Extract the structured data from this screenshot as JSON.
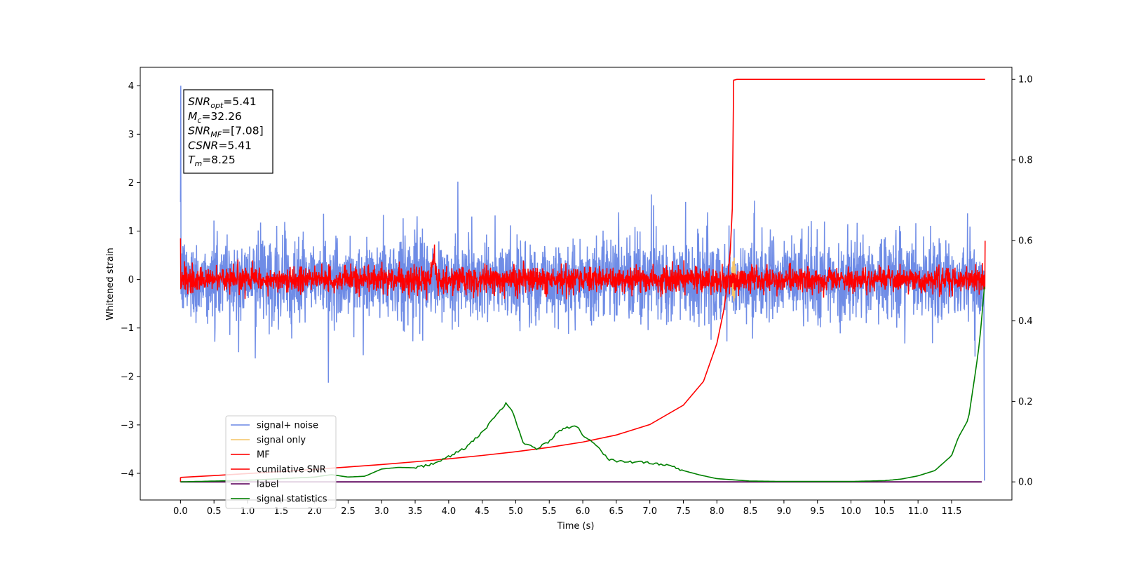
{
  "chart_data": {
    "type": "line",
    "xlabel": "Time (s)",
    "ylabel": "Whitened strain",
    "xlim": [
      -0.6,
      12.4
    ],
    "ylim": [
      -4.55,
      4.38
    ],
    "y2lim": [
      -0.045,
      1.03
    ],
    "x_ticks": [
      "0.0",
      "0.5",
      "1.0",
      "1.5",
      "2.0",
      "2.5",
      "3.0",
      "3.5",
      "4.0",
      "4.5",
      "5.0",
      "5.5",
      "6.0",
      "6.5",
      "7.0",
      "7.5",
      "8.0",
      "8.5",
      "9.0",
      "9.5",
      "10.0",
      "10.5",
      "11.0",
      "11.5"
    ],
    "y_ticks": [
      "4",
      "3",
      "2",
      "1",
      "0",
      "−1",
      "−2",
      "−3",
      "−4"
    ],
    "y2_ticks": [
      "1.0",
      "0.8",
      "0.6",
      "0.4",
      "0.2",
      "0.0"
    ],
    "legend_position": "lower-left",
    "series": [
      {
        "name": "signal+ noise",
        "color": "#6f8ce6",
        "axis": "left",
        "style": "noise",
        "amplitude": 0.42,
        "x_range": [
          0.0,
          11.99
        ]
      },
      {
        "name": "signal only",
        "color": "#f5c56a",
        "axis": "left",
        "style": "burst",
        "center": 8.25,
        "amplitude": 0.5
      },
      {
        "name": "MF",
        "color": "#ff0000",
        "axis": "left",
        "style": "noise",
        "amplitude": 0.13,
        "peak": {
          "x": 3.78,
          "y": 1.0
        }
      },
      {
        "name": "cumilative SNR",
        "color": "#ff0000",
        "axis": "right",
        "x": [
          0.0,
          0.5,
          1.0,
          1.5,
          2.0,
          2.5,
          3.0,
          3.5,
          4.0,
          4.5,
          5.0,
          5.5,
          6.0,
          6.5,
          7.0,
          7.5,
          7.8,
          8.0,
          8.1,
          8.15,
          8.2,
          8.23,
          8.25,
          8.3,
          12.0
        ],
        "values": [
          0.0111,
          0.0157,
          0.0206,
          0.0257,
          0.0312,
          0.037,
          0.0432,
          0.0499,
          0.0573,
          0.0656,
          0.0748,
          0.0859,
          0.0989,
          0.1165,
          0.1425,
          0.1905,
          0.2496,
          0.3441,
          0.4243,
          0.4823,
          0.5739,
          0.6794,
          0.9979,
          1.0,
          1.0
        ]
      },
      {
        "name": "label",
        "color": "#5b005b",
        "axis": "right",
        "x": [
          0.0,
          11.95
        ],
        "values": [
          0.0,
          0.0
        ]
      },
      {
        "name": "signal statistics",
        "color": "#008000",
        "axis": "right",
        "x": [
          0.0,
          0.5,
          1.0,
          1.5,
          2.0,
          2.25,
          2.5,
          2.75,
          3.0,
          3.25,
          3.5,
          3.75,
          4.0,
          4.25,
          4.5,
          4.75,
          4.85,
          4.95,
          5.1,
          5.3,
          5.5,
          5.65,
          5.8,
          5.9,
          6.0,
          6.2,
          6.4,
          6.5,
          6.7,
          6.9,
          7.1,
          7.3,
          7.5,
          7.75,
          8.0,
          8.5,
          9.0,
          9.5,
          10.0,
          10.5,
          10.75,
          11.0,
          11.25,
          11.5,
          11.6,
          11.75,
          11.85,
          11.92,
          11.99
        ],
        "values": [
          0.0,
          0.002,
          0.004,
          0.008,
          0.012,
          0.018,
          0.012,
          0.014,
          0.032,
          0.036,
          0.035,
          0.044,
          0.062,
          0.085,
          0.122,
          0.175,
          0.194,
          0.178,
          0.1,
          0.082,
          0.101,
          0.128,
          0.136,
          0.142,
          0.117,
          0.09,
          0.055,
          0.052,
          0.05,
          0.048,
          0.045,
          0.04,
          0.028,
          0.017,
          0.008,
          0.002,
          0.001,
          0.001,
          0.001,
          0.003,
          0.007,
          0.015,
          0.028,
          0.065,
          0.11,
          0.155,
          0.265,
          0.35,
          0.485
        ]
      }
    ],
    "annotation_lines": [
      {
        "key": "SNR",
        "sub": "opt",
        "value": "=5.41"
      },
      {
        "key": "M",
        "sub": "c",
        "value": "=32.26"
      },
      {
        "key": "SNR",
        "sub": "MF",
        "value": "=[7.08]"
      },
      {
        "key": "CSNR",
        "sub": "",
        "value": "=5.41"
      },
      {
        "key": "T",
        "sub": "m",
        "value": "=8.25"
      }
    ]
  }
}
